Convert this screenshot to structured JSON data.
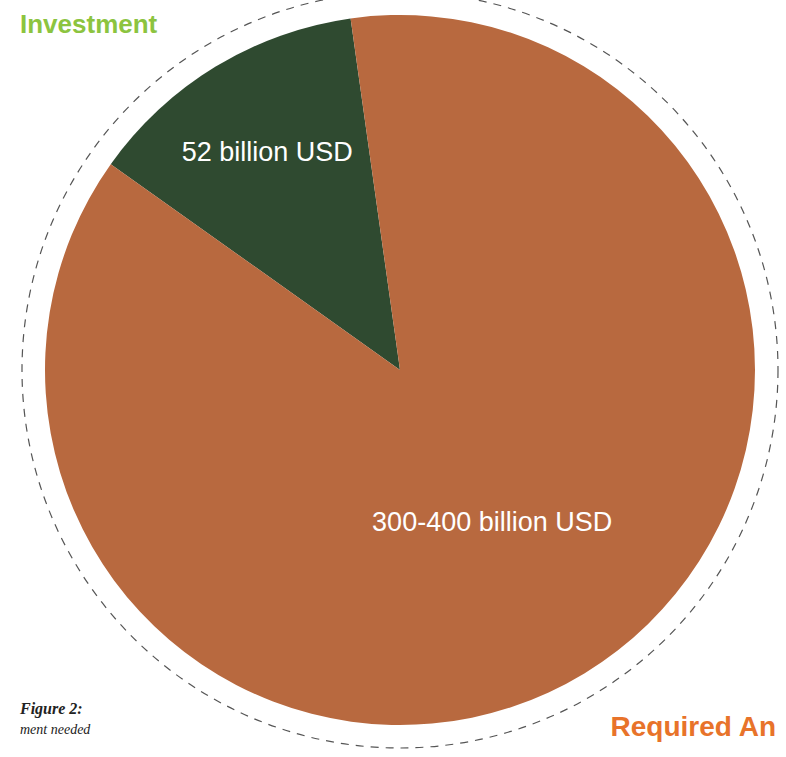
{
  "chart_data": {
    "type": "pie",
    "values": [
      52,
      350
    ],
    "value_labels": [
      "52 billion USD",
      "300-400 billion USD"
    ],
    "colors": [
      "#2f4a30",
      "#b8693f"
    ],
    "data_labels": true,
    "annotations": [
      "Investment",
      "Required An",
      "Figure 2:",
      "ment needed"
    ]
  }
}
